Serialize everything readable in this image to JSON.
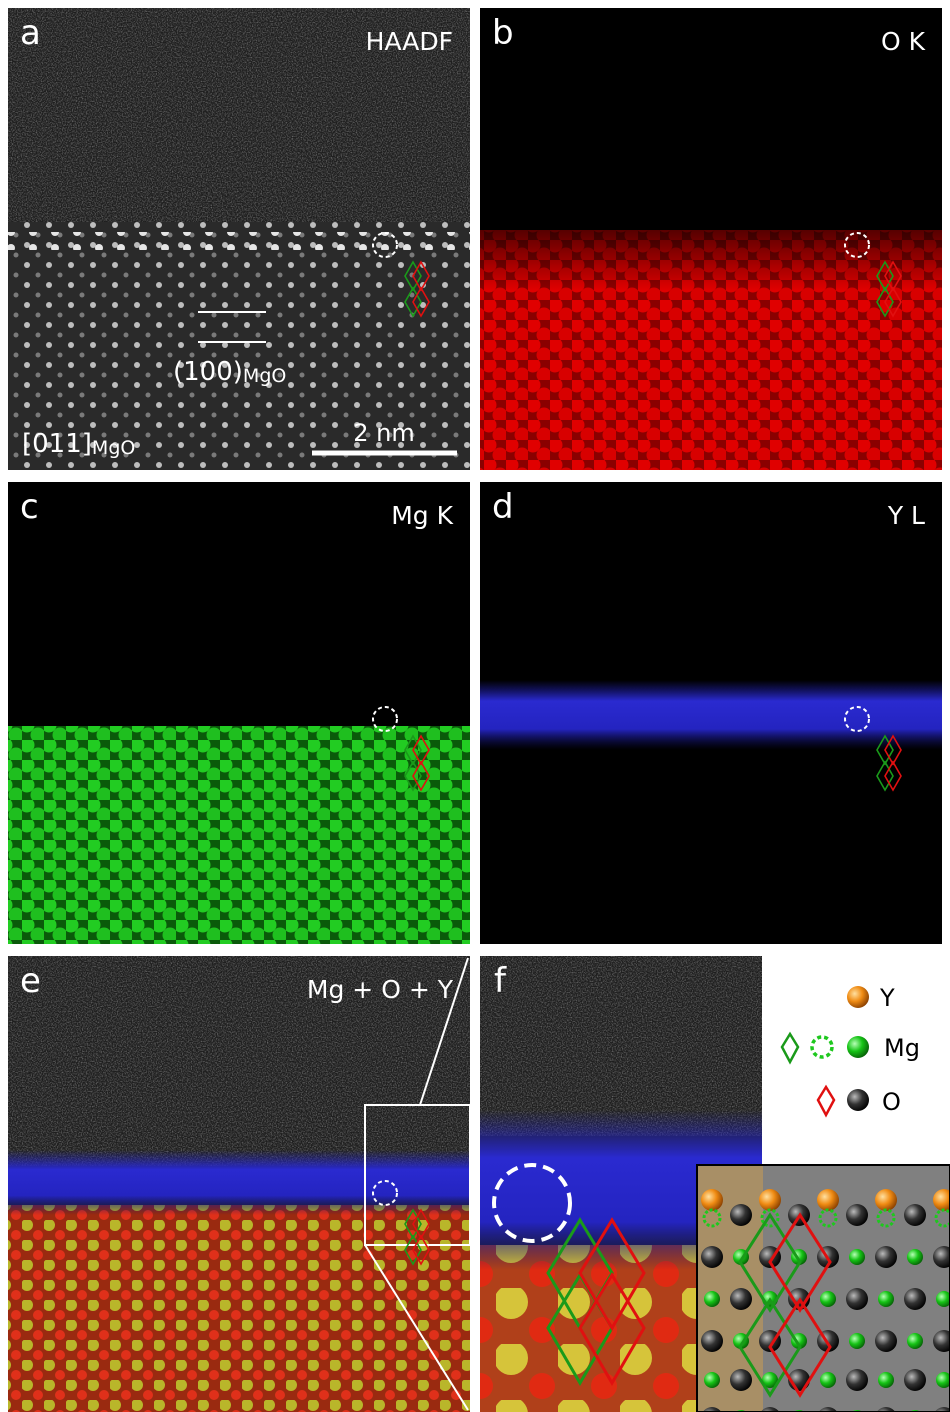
{
  "panels": [
    {
      "letter": "a",
      "label": "HAADF"
    },
    {
      "letter": "b",
      "label": "O K"
    },
    {
      "letter": "c",
      "label": "Mg K"
    },
    {
      "letter": "d",
      "label": "Y L"
    },
    {
      "letter": "e",
      "label": "Mg + O + Y"
    },
    {
      "letter": "f"
    }
  ],
  "annotations": {
    "plane": {
      "main": "(100)",
      "sub": "MgO"
    },
    "zone_axis": {
      "main": "[011]",
      "sub": "MgO"
    },
    "scale_bar": "2 nm"
  },
  "legend": [
    {
      "label": "Y"
    },
    {
      "label": "Mg"
    },
    {
      "label": "O"
    }
  ]
}
